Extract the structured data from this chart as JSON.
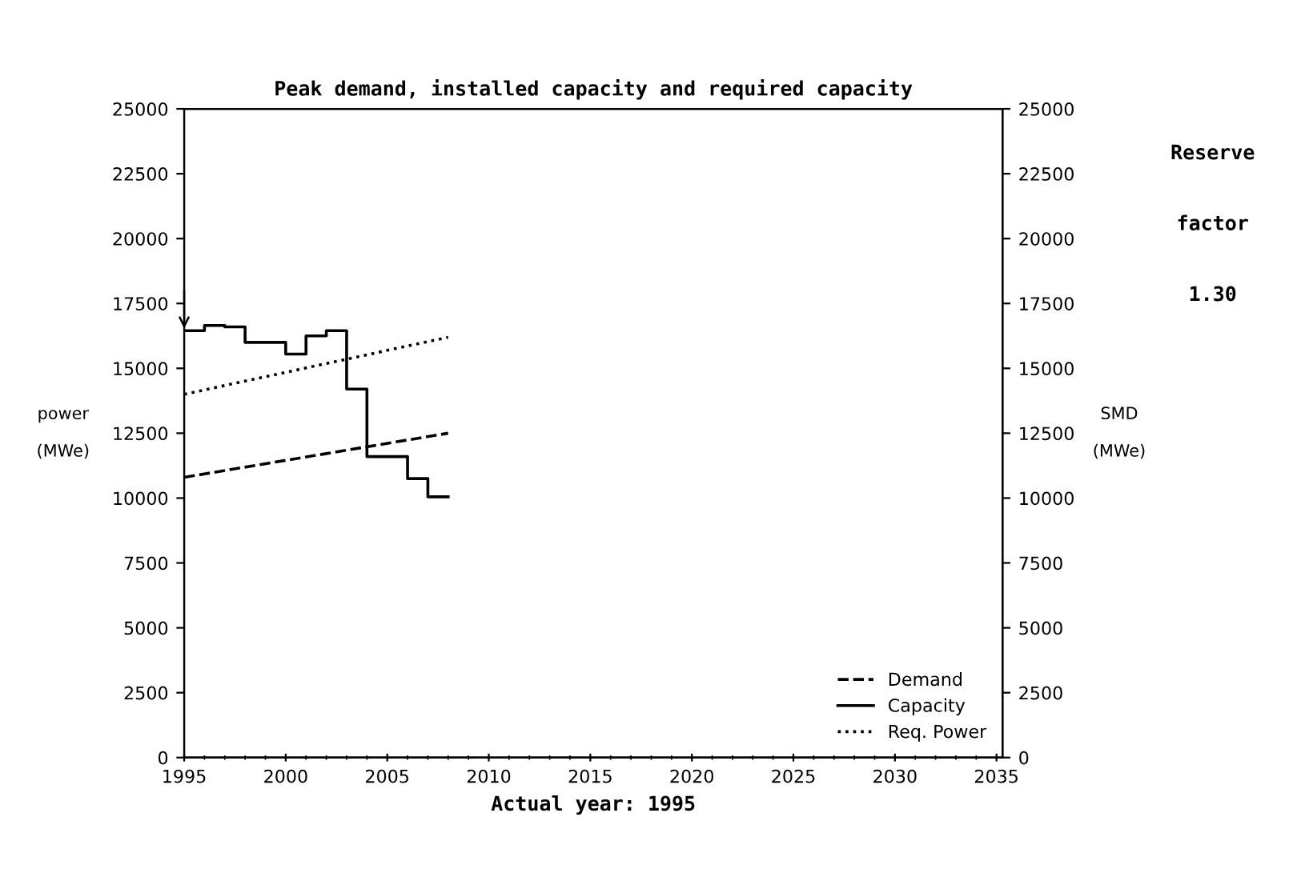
{
  "chart_data": {
    "type": "line",
    "title": "Peak demand, installed capacity and required capacity",
    "xlabel": "Actual year: 1995",
    "ylabel": "power\n\n(MWe)",
    "y2label": "SMD\n\n(MWe)",
    "annotations": [
      "Reserve",
      "factor",
      "1.30"
    ],
    "x": [
      1995,
      2008
    ],
    "series": [
      {
        "name": "Demand",
        "color": "#000000",
        "line_style": "dashed",
        "values": [
          10800,
          12500
        ]
      },
      {
        "name": "Capacity",
        "type": "step",
        "color": "#000000",
        "line_style": "solid",
        "x": [
          1995,
          1996,
          1997,
          1998,
          1999,
          2000,
          2001,
          2002,
          2003,
          2004,
          2005,
          2006,
          2007,
          2008
        ],
        "values": [
          16450,
          16650,
          16600,
          16000,
          16000,
          15550,
          16250,
          16450,
          14200,
          11600,
          11600,
          10750,
          10050,
          10050
        ]
      },
      {
        "name": "Req. Power",
        "color": "#000000",
        "line_style": "dotted",
        "values": [
          14000,
          16200
        ]
      }
    ],
    "xlim": [
      1995,
      2035.3
    ],
    "xticks": [
      1995,
      2000,
      2005,
      2010,
      2015,
      2020,
      2025,
      2030,
      2035
    ],
    "ylim": [
      0,
      25000
    ],
    "yticks": [
      0,
      2500,
      5000,
      7500,
      10000,
      12500,
      15000,
      17500,
      20000,
      22500,
      25000
    ],
    "y2lim": [
      0,
      25000
    ],
    "y2ticks": [
      0,
      2500,
      5000,
      7500,
      10000,
      12500,
      15000,
      17500,
      20000,
      22500,
      25000
    ],
    "grid": false,
    "legend": "bottom right",
    "marker": "none"
  }
}
